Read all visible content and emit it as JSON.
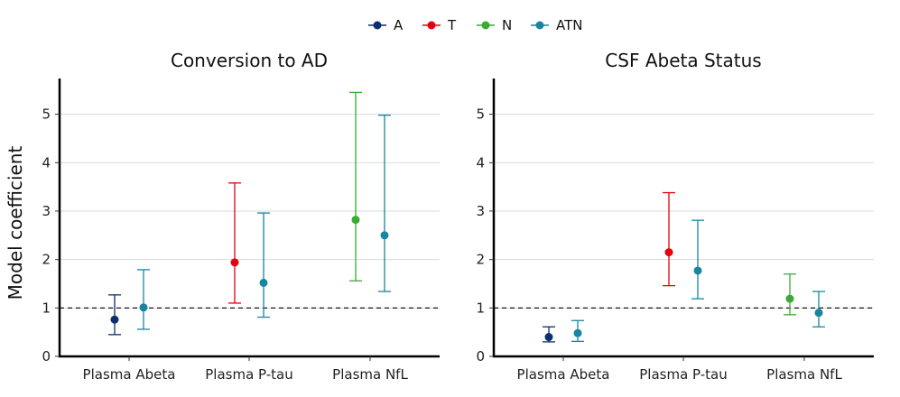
{
  "chart_data": {
    "type": "errorbar",
    "ylabel": "Model coefficient",
    "ylim": [
      0,
      5.7
    ],
    "yticks": [
      0,
      1,
      2,
      3,
      4,
      5
    ],
    "reference_line": 1,
    "grid": "horizontal",
    "legend_position": "top",
    "series": [
      {
        "name": "A",
        "color": "#0d2f6e"
      },
      {
        "name": "T",
        "color": "#e3000f"
      },
      {
        "name": "N",
        "color": "#3aaa35"
      },
      {
        "name": "ATN",
        "color": "#17869e"
      }
    ],
    "panels": [
      {
        "title": "Conversion to AD",
        "categories": [
          "Plasma Abeta",
          "Plasma P-tau",
          "Plasma NfL"
        ],
        "points": [
          {
            "category": "Plasma Abeta",
            "series": "A",
            "value": 0.76,
            "lower": 0.45,
            "upper": 1.27
          },
          {
            "category": "Plasma Abeta",
            "series": "ATN",
            "value": 1.01,
            "lower": 0.56,
            "upper": 1.79
          },
          {
            "category": "Plasma P-tau",
            "series": "T",
            "value": 1.94,
            "lower": 1.1,
            "upper": 3.58
          },
          {
            "category": "Plasma P-tau",
            "series": "ATN",
            "value": 1.52,
            "lower": 0.81,
            "upper": 2.96
          },
          {
            "category": "Plasma NfL",
            "series": "N",
            "value": 2.82,
            "lower": 1.56,
            "upper": 5.45
          },
          {
            "category": "Plasma NfL",
            "series": "ATN",
            "value": 2.5,
            "lower": 1.34,
            "upper": 4.98
          }
        ]
      },
      {
        "title": "CSF Abeta Status",
        "categories": [
          "Plasma Abeta",
          "Plasma P-tau",
          "Plasma NfL"
        ],
        "points": [
          {
            "category": "Plasma Abeta",
            "series": "A",
            "value": 0.4,
            "lower": 0.3,
            "upper": 0.61
          },
          {
            "category": "Plasma Abeta",
            "series": "ATN",
            "value": 0.48,
            "lower": 0.31,
            "upper": 0.74
          },
          {
            "category": "Plasma P-tau",
            "series": "T",
            "value": 2.15,
            "lower": 1.46,
            "upper": 3.38
          },
          {
            "category": "Plasma P-tau",
            "series": "ATN",
            "value": 1.77,
            "lower": 1.19,
            "upper": 2.81
          },
          {
            "category": "Plasma NfL",
            "series": "N",
            "value": 1.19,
            "lower": 0.86,
            "upper": 1.7
          },
          {
            "category": "Plasma NfL",
            "series": "ATN",
            "value": 0.9,
            "lower": 0.61,
            "upper": 1.34
          }
        ]
      }
    ]
  }
}
